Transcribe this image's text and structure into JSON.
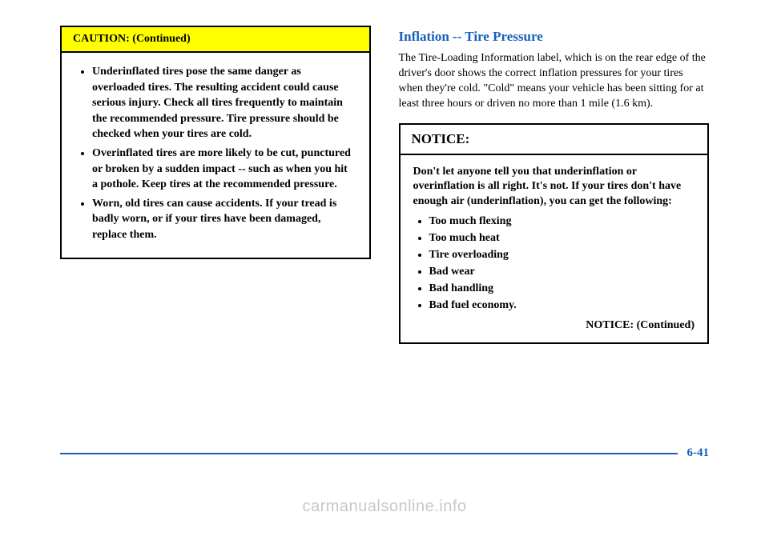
{
  "left": {
    "caution_header": "CAUTION: (Continued)",
    "caution_items": [
      "Underinflated tires pose the same danger as overloaded tires. The resulting accident could cause serious injury. Check all tires frequently to maintain the recommended pressure. Tire pressure should be checked when your tires are cold.",
      "Overinflated tires are more likely to be cut, punctured or broken by a sudden impact -- such as when you hit a pothole. Keep tires at the recommended pressure.",
      "Worn, old tires can cause accidents. If your tread is badly worn, or if your tires have been damaged, replace them."
    ]
  },
  "right": {
    "heading": "Inflation -- Tire Pressure",
    "paragraph": "The Tire-Loading Information label, which is on the rear edge of the driver's door shows the correct inflation pressures for your tires when they're cold. \"Cold\" means your vehicle has been sitting for at least three hours or driven no more than 1 mile (1.6 km).",
    "notice_header": "NOTICE:",
    "notice_intro": "Don't let anyone tell you that underinflation or overinflation is all right. It's not. If your tires don't have enough air (underinflation), you can get the following:",
    "notice_items": [
      "Too much flexing",
      "Too much heat",
      "Tire overloading",
      "Bad wear",
      "Bad handling",
      "Bad fuel economy."
    ],
    "notice_continued": "NOTICE: (Continued)"
  },
  "footer": {
    "page_number": "6-41"
  },
  "watermark": "carmanualsonline.info"
}
